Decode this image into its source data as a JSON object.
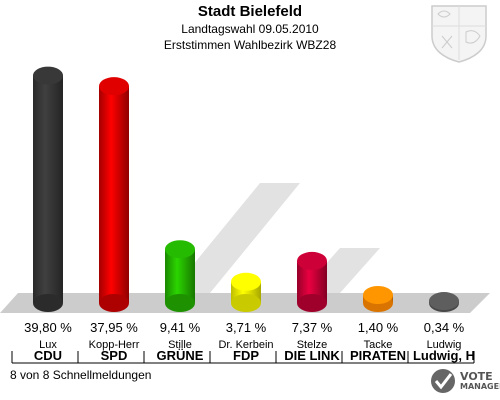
{
  "header": {
    "title": "Stadt Bielefeld",
    "subtitle1": "Landtagswahl 09.05.2010",
    "subtitle2": "Erststimmen Wahlbezirk WBZ28"
  },
  "footer": {
    "status": "8 von 8 Schnellmeldungen"
  },
  "logo": {
    "line1": "VOTE",
    "line2": "MANAGER"
  },
  "colors": {
    "CDU": "#333333",
    "SPD": "#cc0000",
    "GRUENE": "#22aa00",
    "FDP": "#eeee00",
    "LINKE": "#bb0033",
    "PIRATEN": "#ff8800",
    "other": "#555555"
  },
  "chart_data": {
    "type": "bar",
    "candidates": [
      "Lux",
      "Kopp-Herr",
      "Stille",
      "Dr. Kerbein",
      "Stelze",
      "Tacke",
      "Ludwig"
    ],
    "categories": [
      "CDU",
      "SPD",
      "GRÜNE",
      "FDP",
      "DIE LINK",
      "PIRATEN",
      "Ludwig, H"
    ],
    "values": [
      39.8,
      37.95,
      9.41,
      3.71,
      7.37,
      1.4,
      0.34
    ],
    "value_labels": [
      "39,80 %",
      "37,95 %",
      "9,41 %",
      "3,71 %",
      "7,37 %",
      "1,40 %",
      "0,34 %"
    ],
    "colors": [
      "#333333",
      "#cc0000",
      "#22aa00",
      "#eeee00",
      "#bb0033",
      "#ff8800",
      "#555555"
    ],
    "ylim": [
      0,
      42
    ]
  }
}
